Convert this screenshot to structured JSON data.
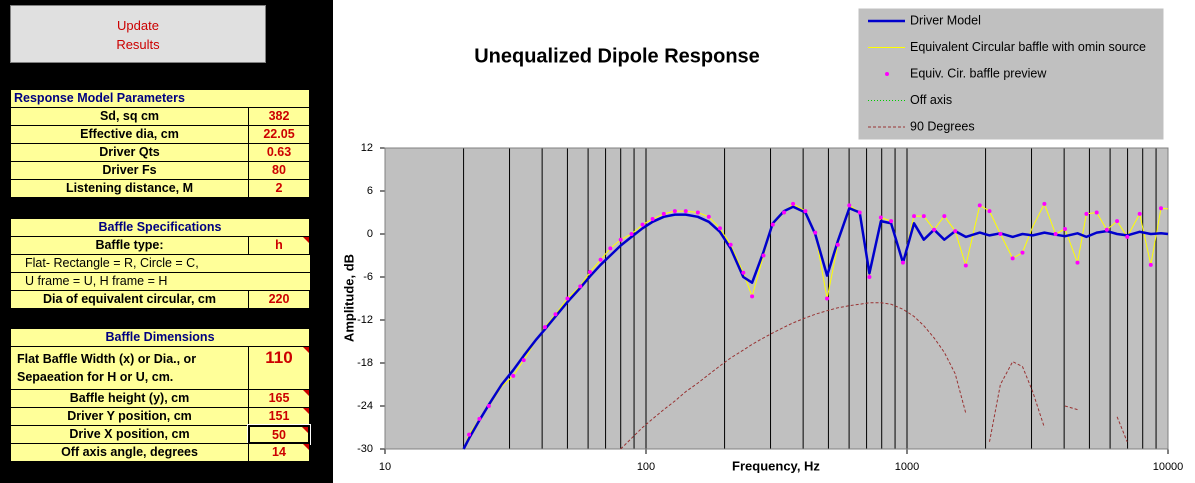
{
  "button": {
    "lines": [
      "Update",
      "Results"
    ]
  },
  "panels": [
    {
      "title": "Response Model Parameters",
      "rows": [
        {
          "label": "Sd, sq cm",
          "value": "382"
        },
        {
          "label": "Effective dia, cm",
          "value": "22.05"
        },
        {
          "label": "Driver Qts",
          "value": "0.63"
        },
        {
          "label": "Driver Fs",
          "value": "80"
        },
        {
          "label": "Listening distance, M",
          "value": "2"
        }
      ]
    },
    {
      "title": "Baffle Specifications",
      "rows": [
        {
          "label": "Baffle type:",
          "value": "h"
        },
        {
          "label": "Flat- Rectangle = R, Circle = C,"
        },
        {
          "label": "U frame = U, H frame = H"
        },
        {
          "label": "Dia of equivalent circular, cm",
          "value": "220"
        }
      ]
    },
    {
      "title": "Baffle Dimensions",
      "rows": [
        {
          "label": [
            "Flat Baffle Width (x) or Dia., or",
            "Sepaeation for H or U, cm."
          ],
          "value": "110"
        },
        {
          "label": "Baffle height (y), cm",
          "value": "165"
        },
        {
          "label": "Driver Y position, cm",
          "value": "151"
        },
        {
          "label": "Drive X position, cm",
          "value": "50"
        },
        {
          "label": "Off axis angle, degrees",
          "value": "14"
        }
      ]
    }
  ],
  "chart_data": {
    "type": "line",
    "title": "Unequalized Dipole Response",
    "x_label": "Frequency, Hz",
    "y_label": "Amplitude, dB",
    "x_log": true,
    "grid": true,
    "legend": "top-right",
    "xlim": [
      10,
      10000
    ],
    "xticks": [
      10,
      100,
      1000,
      10000
    ],
    "ylim": [
      -30,
      12
    ],
    "yticks": [
      -30,
      -24,
      -18,
      -12,
      -6,
      0,
      6,
      12
    ],
    "x": [
      20,
      21,
      23,
      25,
      28,
      31,
      34,
      38,
      41,
      45,
      50,
      56,
      61,
      67,
      73,
      80,
      88,
      97,
      106,
      117,
      129,
      142,
      158,
      174,
      192,
      211,
      236,
      255,
      282,
      306,
      338,
      366,
      408,
      445,
      494,
      543,
      601,
      659,
      718,
      794,
      869,
      965,
      1064,
      1160,
      1270,
      1390,
      1530,
      1680,
      1900,
      2070,
      2280,
      2540,
      2770,
      3030,
      3360,
      3710,
      4030,
      4500,
      4870,
      5330,
      5830,
      6380,
      6980,
      7790,
      8590,
      9400,
      10000
    ],
    "series": [
      {
        "name": "Driver Model",
        "color": "#0000cc",
        "style": "solid",
        "values": [
          -30,
          -28.5,
          -26,
          -23.8,
          -21,
          -19,
          -17,
          -14.7,
          -13.3,
          -11.5,
          -9.5,
          -7.5,
          -5.9,
          -4.3,
          -3,
          -1.6,
          -0.4,
          0.8,
          1.7,
          2.4,
          2.7,
          2.7,
          2.4,
          1.7,
          0.3,
          -2,
          -6,
          -6.8,
          -2.5,
          1.5,
          3.2,
          3.8,
          3,
          0,
          -5.8,
          -1,
          3.6,
          3,
          -5.5,
          1.8,
          1.5,
          -4,
          1.5,
          -0.8,
          0.6,
          -0.8,
          0.4,
          -0.4,
          0.2,
          -0.2,
          0.1,
          -0.4,
          0,
          -0.2,
          0.2,
          -0.1,
          -0.3,
          0.1,
          -0.4,
          0.2,
          0.4,
          0,
          -0.2,
          0.3,
          0,
          0.1,
          0
        ]
      },
      {
        "name": "Equivalent Circular baffle with omin source",
        "color": "#ffff00",
        "style": "thin",
        "values": [
          -30,
          -28,
          -25.8,
          -24,
          -21.3,
          -19.8,
          -17.6,
          -14.8,
          -13,
          -11.2,
          -9,
          -7.3,
          -5.3,
          -3.6,
          -2,
          -0.8,
          0,
          1.3,
          2.1,
          2.8,
          3.2,
          3.2,
          3,
          2.4,
          0.8,
          -1.5,
          -5.4,
          -8.7,
          -3,
          1.3,
          3,
          4.2,
          3.2,
          0.2,
          -9,
          -1.5,
          4,
          3,
          -6,
          2.3,
          1.8,
          -4,
          2.5,
          2.5,
          0.6,
          2.5,
          0.4,
          -4.4,
          4,
          3.2,
          0,
          -3.4,
          -2.6,
          1,
          4.2,
          0,
          0.7,
          -4,
          2.8,
          3,
          0.6,
          1.8,
          -0.4,
          2.8,
          -4.3,
          3.6,
          3.5
        ]
      },
      {
        "name": "Equiv. Cir. baffle preview",
        "color": "#ff00ff",
        "style": "markers",
        "values": [
          null,
          -28,
          -25.8,
          -24,
          null,
          -19.8,
          -17.6,
          null,
          -13,
          -11.2,
          -9,
          -7.3,
          -5.3,
          -3.6,
          -2,
          -0.8,
          0,
          1.3,
          2.1,
          2.8,
          3.2,
          3.2,
          3,
          2.4,
          0.8,
          -1.5,
          -5.4,
          -8.7,
          -3,
          1.3,
          3,
          4.2,
          3.2,
          0.2,
          -9,
          -1.5,
          4,
          3,
          -6,
          2.3,
          1.8,
          -4,
          2.5,
          2.5,
          0.6,
          2.5,
          0.4,
          -4.4,
          4,
          3.2,
          0,
          -3.4,
          -2.6,
          null,
          4.2,
          0,
          0.7,
          -4,
          2.8,
          3,
          0.6,
          1.8,
          -0.4,
          2.8,
          -4.3,
          3.6,
          null
        ]
      },
      {
        "name": "Off axis",
        "color": "#00cc00",
        "style": "dotted",
        "values": [
          -30,
          -28.5,
          -26,
          -23.8,
          -21,
          -19,
          -17,
          -14.7,
          -13.3,
          -11.5,
          -9.5,
          -7.5,
          -5.9,
          -4.3,
          -3,
          -1.6,
          -0.4,
          0.8,
          1.7,
          2.4,
          2.7,
          2.7,
          2.4,
          1.7,
          0.3,
          -2,
          -6,
          -6.8,
          -2.5,
          1.5,
          3.2,
          3.8,
          3,
          0,
          -5.8,
          -1,
          3.6,
          3,
          -5.5,
          1.8,
          1.5,
          -4,
          1.5,
          -0.8,
          0.6,
          -0.8,
          0.4,
          -0.4,
          0.2,
          -0.2,
          0.1,
          -0.4,
          0,
          -0.2,
          0.2,
          -0.1,
          -0.3,
          0.1,
          -0.4,
          0.2,
          0.4,
          0,
          -0.2,
          0.3,
          0,
          0.1,
          0
        ]
      },
      {
        "name": "90 Degrees",
        "color": "#993333",
        "style": "dashed",
        "values": [
          null,
          null,
          null,
          null,
          null,
          null,
          null,
          null,
          null,
          null,
          null,
          null,
          null,
          null,
          null,
          -30,
          -28.5,
          -27,
          -25.8,
          -24.5,
          -23.3,
          -22,
          -20.8,
          -19.6,
          -18.4,
          -17.3,
          -16.2,
          -15.4,
          -14.5,
          -13.8,
          -13,
          -12.4,
          -11.7,
          -11.2,
          -10.7,
          -10.3,
          -10,
          -9.8,
          -9.6,
          -9.6,
          -9.8,
          -10.5,
          -11.5,
          -12.8,
          -14.5,
          -16.5,
          -19.5,
          -25,
          null,
          -29,
          -21,
          -17.8,
          -18.5,
          -22,
          -27,
          null,
          -24,
          -24.5,
          null,
          null,
          null,
          -25.5,
          -29,
          null,
          null,
          null,
          null
        ]
      }
    ]
  }
}
